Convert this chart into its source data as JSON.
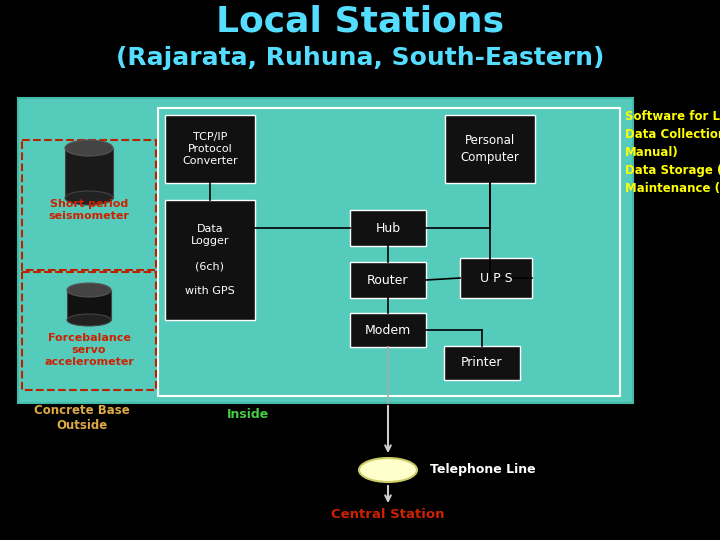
{
  "title_line1": "Local Stations",
  "title_line2": "(Rajarata, Ruhuna, South-Eastern)",
  "title_color": "#55DDFF",
  "bg_color": "#000000",
  "main_box_color": "#55CCBB",
  "component_box_color": "#111111",
  "component_text_color": "#FFFFFF",
  "short_period_label": "Short period\nseismometer",
  "short_period_color": "#CC2200",
  "forcebalance_label": "Forcebalance\nservo\naccelerometer",
  "forcebalance_color": "#CC2200",
  "concrete_label": "Concrete Base\nOutside",
  "concrete_color": "#DDAA44",
  "inside_label": "Inside",
  "inside_color": "#44CC44",
  "tcp_label": "TCP/IP\nProtocol\nConverter",
  "datalogger_label": "Data\nLogger\n\n(6ch)\n\nwith GPS",
  "pc_label": "Personal\nComputer",
  "hub_label": "Hub",
  "router_label": "Router",
  "ups_label": "U P S",
  "modem_label": "Modem",
  "printer_label": "Printer",
  "software_text": "Software for Local station\nData Collection (Own site,\nManual)\nData Storage (Do)\nMaintenance (Own site)",
  "software_color": "#FFFF00",
  "telephone_label": "Telephone Line",
  "telephone_color": "#FFFFFF",
  "central_label": "Central Station",
  "central_color": "#CC2200",
  "arrow_color": "#CCCCCC",
  "line_color": "#000000"
}
